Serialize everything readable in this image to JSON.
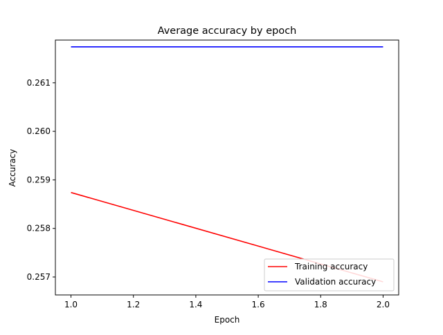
{
  "chart_data": {
    "type": "line",
    "title": "Average accuracy by epoch",
    "xlabel": "Epoch",
    "ylabel": "Accuracy",
    "xlim": [
      0.95,
      2.05
    ],
    "ylim": [
      0.25663,
      0.26188
    ],
    "xticks": [
      "1.0",
      "1.2",
      "1.4",
      "1.6",
      "1.8",
      "2.0"
    ],
    "yticks": [
      "0.257",
      "0.258",
      "0.259",
      "0.260",
      "0.261"
    ],
    "grid": false,
    "legend_position": "lower-right",
    "series": [
      {
        "name": "Training accuracy",
        "color": "#ff0000",
        "x": [
          1.0,
          2.0
        ],
        "y": [
          0.25874,
          0.2569
        ]
      },
      {
        "name": "Validation accuracy",
        "color": "#0000ff",
        "x": [
          1.0,
          2.0
        ],
        "y": [
          0.26174,
          0.26174
        ]
      }
    ]
  }
}
